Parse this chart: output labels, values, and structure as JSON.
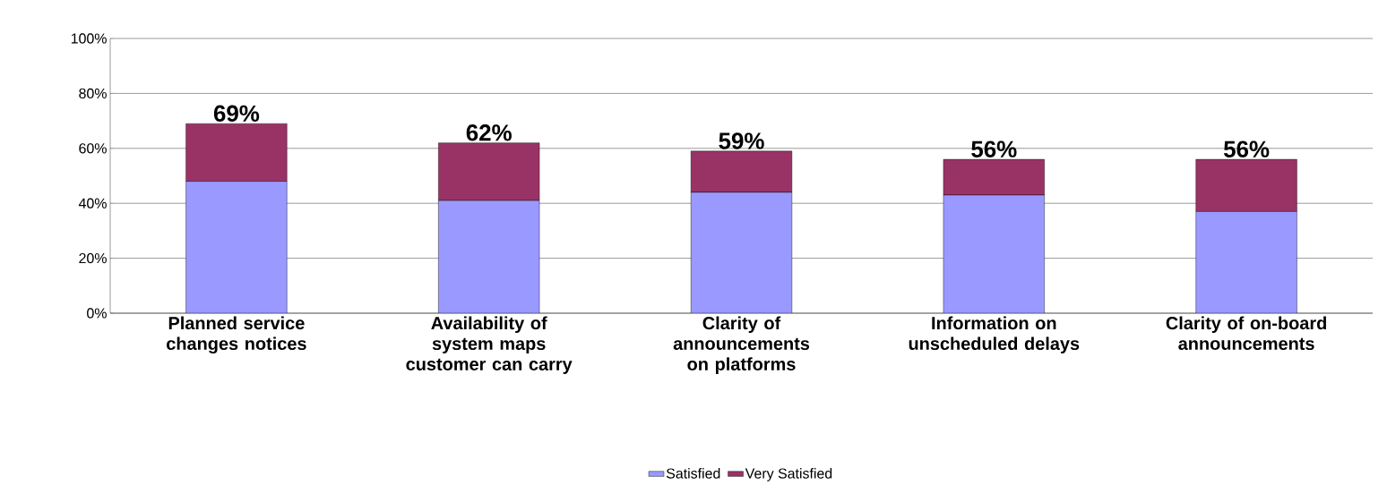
{
  "chart_data": {
    "type": "bar",
    "stacked": true,
    "categories": [
      "Planned service changes notices",
      "Availability of system maps customer can carry",
      "Clarity of announcements on platforms",
      "Information on unscheduled delays",
      "Clarity of on-board announcements"
    ],
    "series": [
      {
        "name": "Satisfied",
        "color": "#9999ff",
        "values": [
          48,
          41,
          44,
          43,
          37
        ]
      },
      {
        "name": "Very Satisfied",
        "color": "#993366",
        "values": [
          21,
          21,
          15,
          13,
          19
        ]
      }
    ],
    "totals": [
      "69%",
      "62%",
      "59%",
      "56%",
      "56%"
    ],
    "ylim": [
      0,
      100
    ],
    "yticks": [
      {
        "value": 0,
        "label": "0%"
      },
      {
        "value": 20,
        "label": "20%"
      },
      {
        "value": 40,
        "label": "40%"
      },
      {
        "value": 60,
        "label": "60%"
      },
      {
        "value": 80,
        "label": "80%"
      },
      {
        "value": 100,
        "label": "100%"
      }
    ],
    "grid": "y",
    "legend": "bottom"
  }
}
